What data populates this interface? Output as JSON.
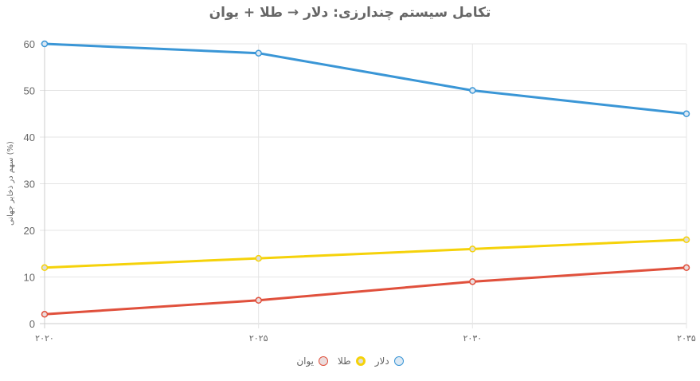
{
  "chart_data": {
    "type": "line",
    "title": "تکامل سیستم چندارزی: دلار → طلا + یوان",
    "xlabel": "",
    "ylabel": "سهم در ذخایر جهانی (%)",
    "categories": [
      "۲۰۲۰",
      "۲۰۲۵",
      "۲۰۳۰",
      "۲۰۳۵"
    ],
    "ylim": [
      0,
      60
    ],
    "yticks": [
      0,
      10,
      20,
      30,
      40,
      50,
      60
    ],
    "grid": true,
    "legend_position": "bottom",
    "series": [
      {
        "name": "دلار",
        "values": [
          60,
          58,
          50,
          45
        ],
        "color": "#3a96d6",
        "fill": "#dce9f4"
      },
      {
        "name": "طلا",
        "values": [
          12,
          14,
          16,
          18
        ],
        "color": "#f5d20a",
        "fill": "#dddddd"
      },
      {
        "name": "یوان",
        "values": [
          2,
          5,
          9,
          12
        ],
        "color": "#e0503c",
        "fill": "#ebdcdc"
      }
    ]
  }
}
